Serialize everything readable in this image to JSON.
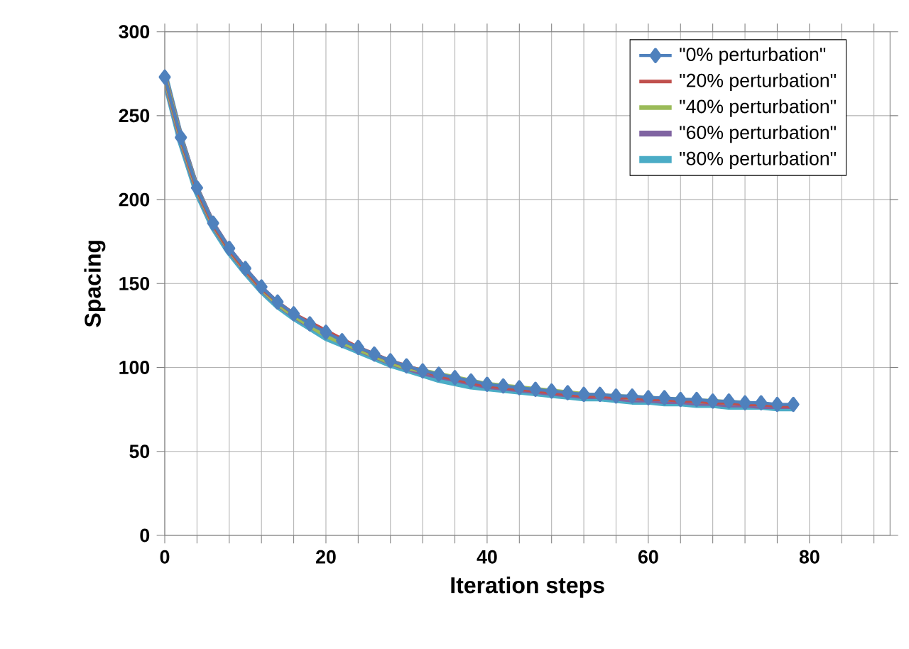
{
  "chart_data": {
    "type": "line",
    "xlabel": "Iteration steps",
    "ylabel": "Spacing",
    "x": [
      0,
      2,
      4,
      6,
      8,
      10,
      12,
      14,
      16,
      18,
      20,
      22,
      24,
      26,
      28,
      30,
      32,
      34,
      36,
      38,
      40,
      42,
      44,
      46,
      48,
      50,
      52,
      54,
      56,
      58,
      60,
      62,
      64,
      66,
      68,
      70,
      72,
      74,
      76,
      78
    ],
    "series": [
      {
        "name": "\"0% perturbation\"",
        "color": "#4f81bd",
        "marker": "diamond",
        "values": [
          273,
          237,
          207,
          186,
          171,
          159,
          148,
          139,
          132,
          126,
          121,
          116,
          112,
          108,
          104,
          101,
          98,
          96,
          94,
          92,
          90,
          89,
          88,
          87,
          86,
          85,
          84,
          84,
          83,
          83,
          82,
          82,
          81,
          81,
          80,
          80,
          79,
          79,
          78,
          78
        ]
      },
      {
        "name": "\"20% perturbation\"",
        "color": "#c0504d",
        "values": [
          273,
          236,
          206,
          185,
          170,
          158,
          147,
          139,
          132,
          127,
          122,
          117,
          112,
          108,
          104,
          101,
          98,
          95,
          93,
          91,
          89,
          88,
          87,
          86,
          85,
          84,
          83,
          83,
          82,
          82,
          81,
          81,
          80,
          80,
          79,
          79,
          78,
          78,
          77,
          77
        ]
      },
      {
        "name": "\"40% perturbation\"",
        "color": "#9bbb59",
        "values": [
          273,
          236,
          206,
          185,
          170,
          158,
          147,
          138,
          131,
          125,
          119,
          115,
          111,
          107,
          103,
          100,
          98,
          96,
          94,
          92,
          90,
          89,
          88,
          87,
          86,
          85,
          84,
          83,
          83,
          82,
          82,
          81,
          81,
          80,
          80,
          79,
          79,
          78,
          null,
          null
        ]
      },
      {
        "name": "\"60% perturbation\"",
        "color": "#8064a2",
        "values": [
          273,
          236,
          206,
          185,
          170,
          158,
          147,
          138,
          131,
          125,
          120,
          115,
          111,
          107,
          103,
          100,
          97,
          95,
          93,
          91,
          89,
          88,
          87,
          86,
          85,
          84,
          83,
          83,
          82,
          81,
          81,
          80,
          80,
          79,
          79,
          78,
          78,
          77,
          77,
          77
        ]
      },
      {
        "name": "\"80% perturbation\"",
        "color": "#4bacc6",
        "values": [
          273,
          235,
          205,
          184,
          169,
          157,
          146,
          137,
          130,
          124,
          118,
          114,
          110,
          106,
          102,
          99,
          96,
          93,
          91,
          89,
          88,
          87,
          86,
          85,
          84,
          83,
          82,
          82,
          81,
          80,
          80,
          79,
          79,
          78,
          78,
          77,
          77,
          77,
          76,
          76
        ]
      }
    ],
    "xlim": [
      0,
      90
    ],
    "ylim": [
      0,
      300
    ],
    "xticks": [
      0,
      {
        "value": 4,
        "label": null
      },
      {
        "value": 8,
        "label": null
      },
      {
        "value": 12,
        "label": null
      },
      {
        "value": 16,
        "label": null
      },
      20,
      {
        "value": 24,
        "label": null
      },
      {
        "value": 28,
        "label": null
      },
      {
        "value": 32,
        "label": null
      },
      {
        "value": 36,
        "label": null
      },
      40,
      {
        "value": 44,
        "label": null
      },
      {
        "value": 48,
        "label": null
      },
      {
        "value": 52,
        "label": null
      },
      {
        "value": 56,
        "label": null
      },
      60,
      {
        "value": 64,
        "label": null
      },
      {
        "value": 68,
        "label": null
      },
      {
        "value": 72,
        "label": null
      },
      {
        "value": 76,
        "label": null
      },
      80,
      {
        "value": 84,
        "label": null
      },
      {
        "value": 88,
        "label": null
      }
    ],
    "yticks": [
      0,
      50,
      100,
      150,
      200,
      250,
      300
    ],
    "grid": true,
    "legend": "top right",
    "line_style": "solid"
  }
}
